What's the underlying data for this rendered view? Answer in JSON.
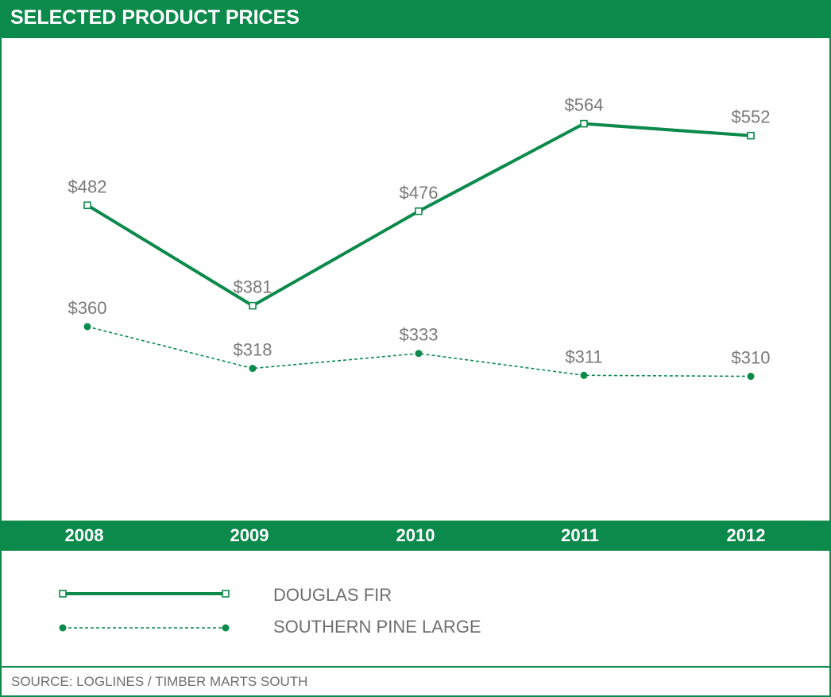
{
  "title": "SELECTED PRODUCT PRICES",
  "source": "SOURCE: LOGLINES / TIMBER MARTS SOUTH",
  "colors": {
    "accent": "#0b8a4c",
    "label_gray": "#7a7a7a"
  },
  "chart_data": {
    "type": "line",
    "title": "SELECTED PRODUCT PRICES",
    "categories": [
      "2008",
      "2009",
      "2010",
      "2011",
      "2012"
    ],
    "series": [
      {
        "name": "DOUGLAS FIR",
        "marker": "open-square",
        "style": "solid",
        "values": [
          482,
          381,
          476,
          564,
          552
        ],
        "labels": [
          "$482",
          "$381",
          "$476",
          "$564",
          "$552"
        ]
      },
      {
        "name": "SOUTHERN PINE LARGE",
        "marker": "filled-circle",
        "style": "dashed",
        "values": [
          360,
          318,
          333,
          311,
          310
        ],
        "labels": [
          "$360",
          "$318",
          "$333",
          "$311",
          "$310"
        ]
      }
    ],
    "xlabel": "",
    "ylabel": "",
    "ylim": [
      165,
      650
    ],
    "legend_position": "bottom-left",
    "grid": false
  }
}
